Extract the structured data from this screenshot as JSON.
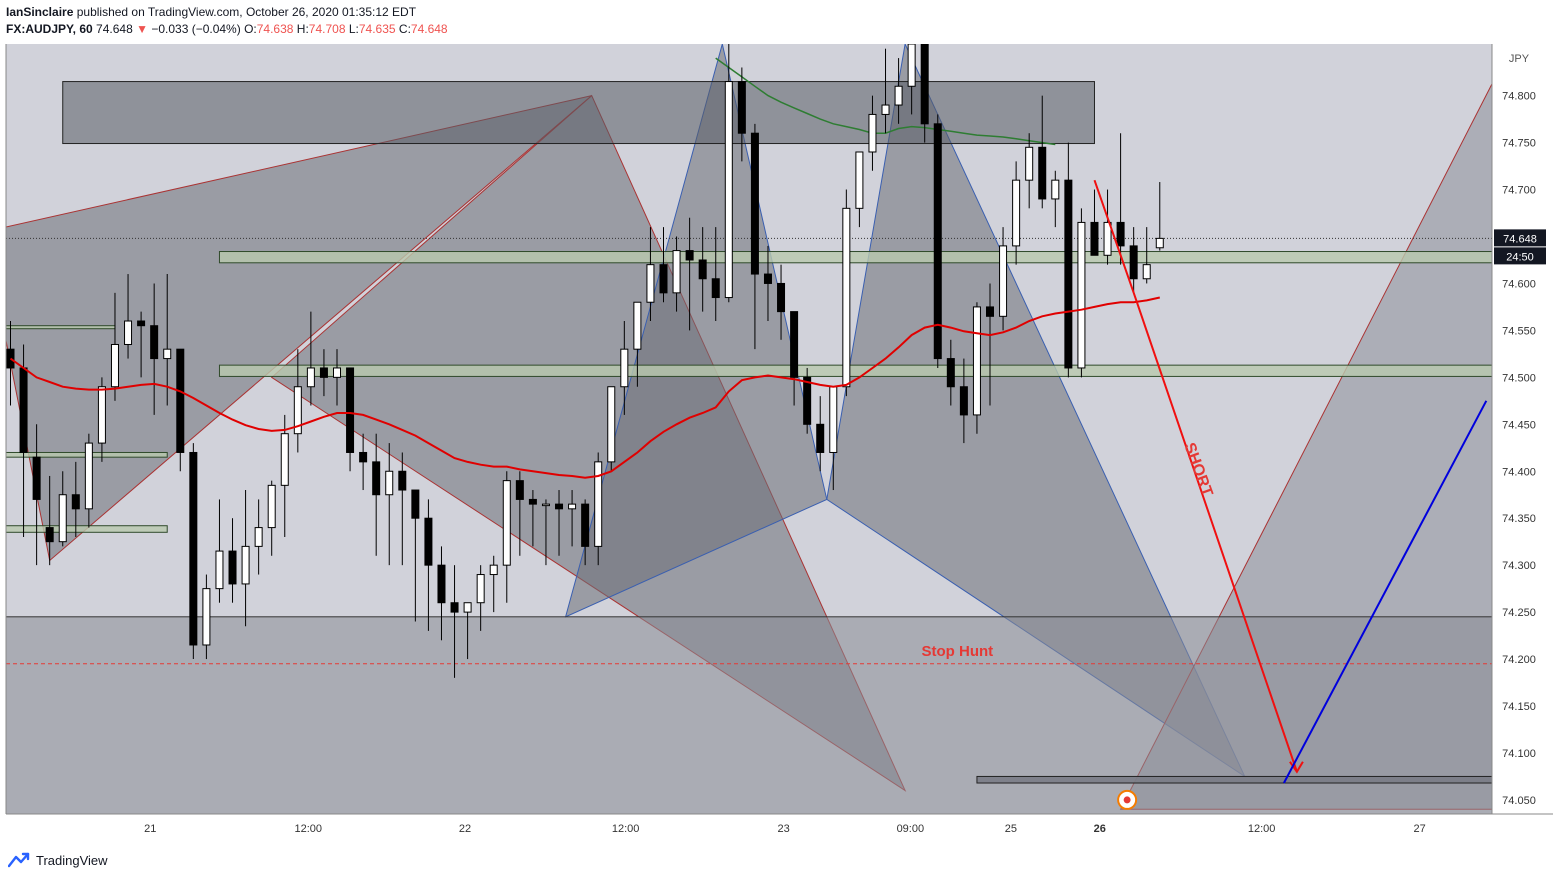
{
  "header": {
    "author": "IanSinclaire",
    "published": "published on TradingView.com, October 26, 2020 01:35:12 EDT",
    "symbol": "FX:AUDJPY, 60",
    "last": "74.648",
    "arrow": "▼",
    "change": "−0.033 (−0.04%)",
    "o_label": "O:",
    "o": "74.638",
    "h_label": "H:",
    "h": "74.708",
    "l_label": "L:",
    "l": "74.635",
    "c_label": "C:",
    "c": "74.648"
  },
  "footer": {
    "brand": "TradingView",
    "icon": "tradingview-logo-icon"
  },
  "colors": {
    "up_body": "#ffffff",
    "down_body": "#000000",
    "wick": "#000000",
    "ma_red": "#e00000",
    "ma_green": "#2e7d32",
    "short_arrow": "#f01010",
    "long_arrow": "#0000dd",
    "zone_green": "#b9c9ae",
    "pattern_fill": "#6d6f78"
  },
  "chart_data": {
    "type": "candlestick",
    "currency": "JPY",
    "y_ticks": [
      "74.800",
      "74.750",
      "74.700",
      "74.650",
      "74.600",
      "74.550",
      "74.500",
      "74.450",
      "74.400",
      "74.350",
      "74.300",
      "74.250",
      "74.200",
      "74.150",
      "74.100",
      "74.050"
    ],
    "ylim": [
      74.035,
      74.855
    ],
    "last_price": "74.648",
    "countdown": "24:50",
    "x_ticks": [
      "21",
      "12:00",
      "22",
      "12:00",
      "23",
      "09:00",
      "25",
      "26",
      "12:00",
      "27"
    ],
    "x_ticks_bold": [
      false,
      false,
      false,
      false,
      false,
      false,
      false,
      true,
      false,
      false
    ],
    "grid": false,
    "annotations": {
      "short": "SHORT",
      "stop_hunt": "Stop Hunt"
    },
    "zones": [
      {
        "name": "upper-supply-box",
        "y1": 74.815,
        "y2": 74.749
      },
      {
        "name": "green-zone-upper",
        "y1": 74.634,
        "y2": 74.622
      },
      {
        "name": "green-zone-lower",
        "y1": 74.513,
        "y2": 74.501
      },
      {
        "name": "lower-support-zone",
        "y1": 74.245,
        "y2": 74.035
      },
      {
        "name": "target-zone",
        "y1": 74.075,
        "y2": 74.068
      }
    ],
    "stop_hunt_level": 74.195,
    "candles": [
      {
        "o": 74.53,
        "h": 74.56,
        "l": 74.47,
        "c": 74.51
      },
      {
        "o": 74.51,
        "h": 74.535,
        "l": 74.33,
        "c": 74.42
      },
      {
        "o": 74.415,
        "h": 74.45,
        "l": 74.3,
        "c": 74.37
      },
      {
        "o": 74.34,
        "h": 74.395,
        "l": 74.3,
        "c": 74.325
      },
      {
        "o": 74.325,
        "h": 74.4,
        "l": 74.32,
        "c": 74.375
      },
      {
        "o": 74.375,
        "h": 74.41,
        "l": 74.33,
        "c": 74.36
      },
      {
        "o": 74.36,
        "h": 74.44,
        "l": 74.34,
        "c": 74.43
      },
      {
        "o": 74.43,
        "h": 74.5,
        "l": 74.41,
        "c": 74.49
      },
      {
        "o": 74.49,
        "h": 74.59,
        "l": 74.475,
        "c": 74.535
      },
      {
        "o": 74.535,
        "h": 74.61,
        "l": 74.52,
        "c": 74.56
      },
      {
        "o": 74.56,
        "h": 74.57,
        "l": 74.5,
        "c": 74.555
      },
      {
        "o": 74.555,
        "h": 74.6,
        "l": 74.46,
        "c": 74.52
      },
      {
        "o": 74.52,
        "h": 74.61,
        "l": 74.47,
        "c": 74.53
      },
      {
        "o": 74.53,
        "h": 74.53,
        "l": 74.4,
        "c": 74.42
      },
      {
        "o": 74.42,
        "h": 74.43,
        "l": 74.2,
        "c": 74.215
      },
      {
        "o": 74.215,
        "h": 74.29,
        "l": 74.2,
        "c": 74.275
      },
      {
        "o": 74.275,
        "h": 74.37,
        "l": 74.26,
        "c": 74.315
      },
      {
        "o": 74.315,
        "h": 74.35,
        "l": 74.26,
        "c": 74.28
      },
      {
        "o": 74.28,
        "h": 74.38,
        "l": 74.235,
        "c": 74.32
      },
      {
        "o": 74.32,
        "h": 74.37,
        "l": 74.29,
        "c": 74.34
      },
      {
        "o": 74.34,
        "h": 74.39,
        "l": 74.31,
        "c": 74.385
      },
      {
        "o": 74.385,
        "h": 74.46,
        "l": 74.33,
        "c": 74.44
      },
      {
        "o": 74.44,
        "h": 74.53,
        "l": 74.42,
        "c": 74.49
      },
      {
        "o": 74.49,
        "h": 74.57,
        "l": 74.47,
        "c": 74.51
      },
      {
        "o": 74.51,
        "h": 74.53,
        "l": 74.48,
        "c": 74.5
      },
      {
        "o": 74.5,
        "h": 74.53,
        "l": 74.47,
        "c": 74.51
      },
      {
        "o": 74.51,
        "h": 74.51,
        "l": 74.4,
        "c": 74.42
      },
      {
        "o": 74.42,
        "h": 74.44,
        "l": 74.38,
        "c": 74.41
      },
      {
        "o": 74.41,
        "h": 74.44,
        "l": 74.31,
        "c": 74.375
      },
      {
        "o": 74.375,
        "h": 74.43,
        "l": 74.3,
        "c": 74.4
      },
      {
        "o": 74.4,
        "h": 74.42,
        "l": 74.3,
        "c": 74.38
      },
      {
        "o": 74.38,
        "h": 74.38,
        "l": 74.24,
        "c": 74.35
      },
      {
        "o": 74.35,
        "h": 74.37,
        "l": 74.23,
        "c": 74.3
      },
      {
        "o": 74.3,
        "h": 74.32,
        "l": 74.22,
        "c": 74.26
      },
      {
        "o": 74.26,
        "h": 74.3,
        "l": 74.18,
        "c": 74.25
      },
      {
        "o": 74.25,
        "h": 74.26,
        "l": 74.2,
        "c": 74.26
      },
      {
        "o": 74.26,
        "h": 74.3,
        "l": 74.23,
        "c": 74.29
      },
      {
        "o": 74.29,
        "h": 74.31,
        "l": 74.25,
        "c": 74.3
      },
      {
        "o": 74.3,
        "h": 74.4,
        "l": 74.26,
        "c": 74.39
      },
      {
        "o": 74.39,
        "h": 74.4,
        "l": 74.31,
        "c": 74.37
      },
      {
        "o": 74.37,
        "h": 74.38,
        "l": 74.32,
        "c": 74.365
      },
      {
        "o": 74.365,
        "h": 74.37,
        "l": 74.3,
        "c": 74.365
      },
      {
        "o": 74.365,
        "h": 74.38,
        "l": 74.31,
        "c": 74.36
      },
      {
        "o": 74.36,
        "h": 74.38,
        "l": 74.32,
        "c": 74.365
      },
      {
        "o": 74.365,
        "h": 74.37,
        "l": 74.3,
        "c": 74.32
      },
      {
        "o": 74.32,
        "h": 74.42,
        "l": 74.3,
        "c": 74.41
      },
      {
        "o": 74.41,
        "h": 74.49,
        "l": 74.4,
        "c": 74.49
      },
      {
        "o": 74.49,
        "h": 74.56,
        "l": 74.46,
        "c": 74.53
      },
      {
        "o": 74.53,
        "h": 74.58,
        "l": 74.49,
        "c": 74.58
      },
      {
        "o": 74.58,
        "h": 74.66,
        "l": 74.56,
        "c": 74.62
      },
      {
        "o": 74.62,
        "h": 74.66,
        "l": 74.58,
        "c": 74.59
      },
      {
        "o": 74.59,
        "h": 74.65,
        "l": 74.57,
        "c": 74.635
      },
      {
        "o": 74.635,
        "h": 74.67,
        "l": 74.55,
        "c": 74.625
      },
      {
        "o": 74.625,
        "h": 74.66,
        "l": 74.57,
        "c": 74.605
      },
      {
        "o": 74.605,
        "h": 74.66,
        "l": 74.56,
        "c": 74.585
      },
      {
        "o": 74.585,
        "h": 74.855,
        "l": 74.58,
        "c": 74.815
      },
      {
        "o": 74.815,
        "h": 74.83,
        "l": 74.73,
        "c": 74.76
      },
      {
        "o": 74.76,
        "h": 74.77,
        "l": 74.53,
        "c": 74.61
      },
      {
        "o": 74.61,
        "h": 74.64,
        "l": 74.56,
        "c": 74.6
      },
      {
        "o": 74.6,
        "h": 74.62,
        "l": 74.54,
        "c": 74.57
      },
      {
        "o": 74.57,
        "h": 74.57,
        "l": 74.47,
        "c": 74.5
      },
      {
        "o": 74.5,
        "h": 74.51,
        "l": 74.44,
        "c": 74.45
      },
      {
        "o": 74.45,
        "h": 74.48,
        "l": 74.4,
        "c": 74.42
      },
      {
        "o": 74.42,
        "h": 74.49,
        "l": 74.38,
        "c": 74.49
      },
      {
        "o": 74.49,
        "h": 74.7,
        "l": 74.48,
        "c": 74.68
      },
      {
        "o": 74.68,
        "h": 74.74,
        "l": 74.66,
        "c": 74.74
      },
      {
        "o": 74.74,
        "h": 74.8,
        "l": 74.72,
        "c": 74.78
      },
      {
        "o": 74.78,
        "h": 74.85,
        "l": 74.76,
        "c": 74.79
      },
      {
        "o": 74.79,
        "h": 74.84,
        "l": 74.77,
        "c": 74.81
      },
      {
        "o": 74.81,
        "h": 74.86,
        "l": 74.78,
        "c": 74.855
      },
      {
        "o": 74.855,
        "h": 74.855,
        "l": 74.75,
        "c": 74.77
      },
      {
        "o": 74.77,
        "h": 74.78,
        "l": 74.51,
        "c": 74.52
      },
      {
        "o": 74.52,
        "h": 74.54,
        "l": 74.47,
        "c": 74.49
      },
      {
        "o": 74.49,
        "h": 74.52,
        "l": 74.43,
        "c": 74.46
      },
      {
        "o": 74.46,
        "h": 74.58,
        "l": 74.44,
        "c": 74.575
      },
      {
        "o": 74.575,
        "h": 74.6,
        "l": 74.47,
        "c": 74.565
      },
      {
        "o": 74.565,
        "h": 74.66,
        "l": 74.55,
        "c": 74.64
      },
      {
        "o": 74.64,
        "h": 74.73,
        "l": 74.62,
        "c": 74.71
      },
      {
        "o": 74.71,
        "h": 74.76,
        "l": 74.68,
        "c": 74.745
      },
      {
        "o": 74.745,
        "h": 74.8,
        "l": 74.68,
        "c": 74.69
      },
      {
        "o": 74.69,
        "h": 74.72,
        "l": 74.66,
        "c": 74.71
      },
      {
        "o": 74.71,
        "h": 74.75,
        "l": 74.5,
        "c": 74.51
      },
      {
        "o": 74.51,
        "h": 74.68,
        "l": 74.5,
        "c": 74.665
      },
      {
        "o": 74.665,
        "h": 74.7,
        "l": 74.63,
        "c": 74.63
      },
      {
        "o": 74.63,
        "h": 74.7,
        "l": 74.62,
        "c": 74.665
      },
      {
        "o": 74.665,
        "h": 74.76,
        "l": 74.62,
        "c": 74.64
      },
      {
        "o": 74.64,
        "h": 74.66,
        "l": 74.59,
        "c": 74.605
      },
      {
        "o": 74.605,
        "h": 74.66,
        "l": 74.6,
        "c": 74.62
      },
      {
        "o": 74.638,
        "h": 74.708,
        "l": 74.635,
        "c": 74.648
      }
    ],
    "ma_red": [
      74.52,
      74.51,
      74.5,
      74.495,
      74.49,
      74.488,
      74.487,
      74.487,
      74.488,
      74.49,
      74.492,
      74.493,
      74.49,
      74.485,
      74.478,
      74.47,
      74.462,
      74.455,
      74.449,
      74.445,
      74.443,
      74.444,
      74.448,
      74.453,
      74.458,
      74.462,
      74.462,
      74.46,
      74.455,
      74.45,
      74.444,
      74.438,
      74.43,
      74.422,
      74.414,
      74.41,
      74.407,
      74.405,
      74.405,
      74.402,
      74.4,
      74.398,
      74.396,
      74.395,
      74.393,
      74.395,
      74.4,
      74.41,
      74.42,
      74.432,
      74.442,
      74.45,
      74.457,
      74.462,
      74.468,
      74.485,
      74.497,
      74.5,
      74.502,
      74.5,
      74.498,
      74.495,
      74.492,
      74.49,
      74.492,
      74.5,
      74.51,
      74.52,
      74.532,
      74.545,
      74.553,
      74.556,
      74.553,
      74.549,
      74.547,
      74.545,
      74.548,
      74.553,
      74.56,
      74.565,
      74.568,
      74.57,
      74.572,
      74.575,
      74.578,
      74.58,
      74.58,
      74.582,
      74.585
    ],
    "ma_green": [
      74.84,
      74.83,
      74.82,
      74.81,
      74.8,
      74.793,
      74.787,
      74.781,
      74.775,
      74.77,
      74.767,
      74.764,
      74.76,
      74.76,
      74.765,
      74.767,
      74.766,
      74.764,
      74.762,
      74.76,
      74.758,
      74.757,
      74.756,
      74.754,
      74.752,
      74.75,
      74.748
    ],
    "pattern": {
      "left_xabcd": [
        {
          "x": -2,
          "y": 74.655
        },
        {
          "x": 3,
          "y": 74.305
        },
        {
          "x": 44.5,
          "y": 74.8
        },
        {
          "x": 20,
          "y": 74.5
        },
        {
          "x": 68.5,
          "y": 74.06
        }
      ],
      "right_xabcd": [
        {
          "x": 42.5,
          "y": 74.245
        },
        {
          "x": 54.5,
          "y": 74.855
        },
        {
          "x": 62.5,
          "y": 74.37
        },
        {
          "x": 68.5,
          "y": 74.855
        },
        {
          "x": 94.5,
          "y": 74.075
        }
      ],
      "short_arrow": [
        {
          "x": 83,
          "y": 74.71
        },
        {
          "x": 86,
          "y": 74.59
        },
        {
          "x": 98.5,
          "y": 74.08
        }
      ],
      "long_arrow": [
        {
          "x": 97.5,
          "y": 74.068
        },
        {
          "x": 113,
          "y": 74.475
        }
      ],
      "target_marker": {
        "x": 85.5,
        "y": 74.05
      }
    }
  }
}
